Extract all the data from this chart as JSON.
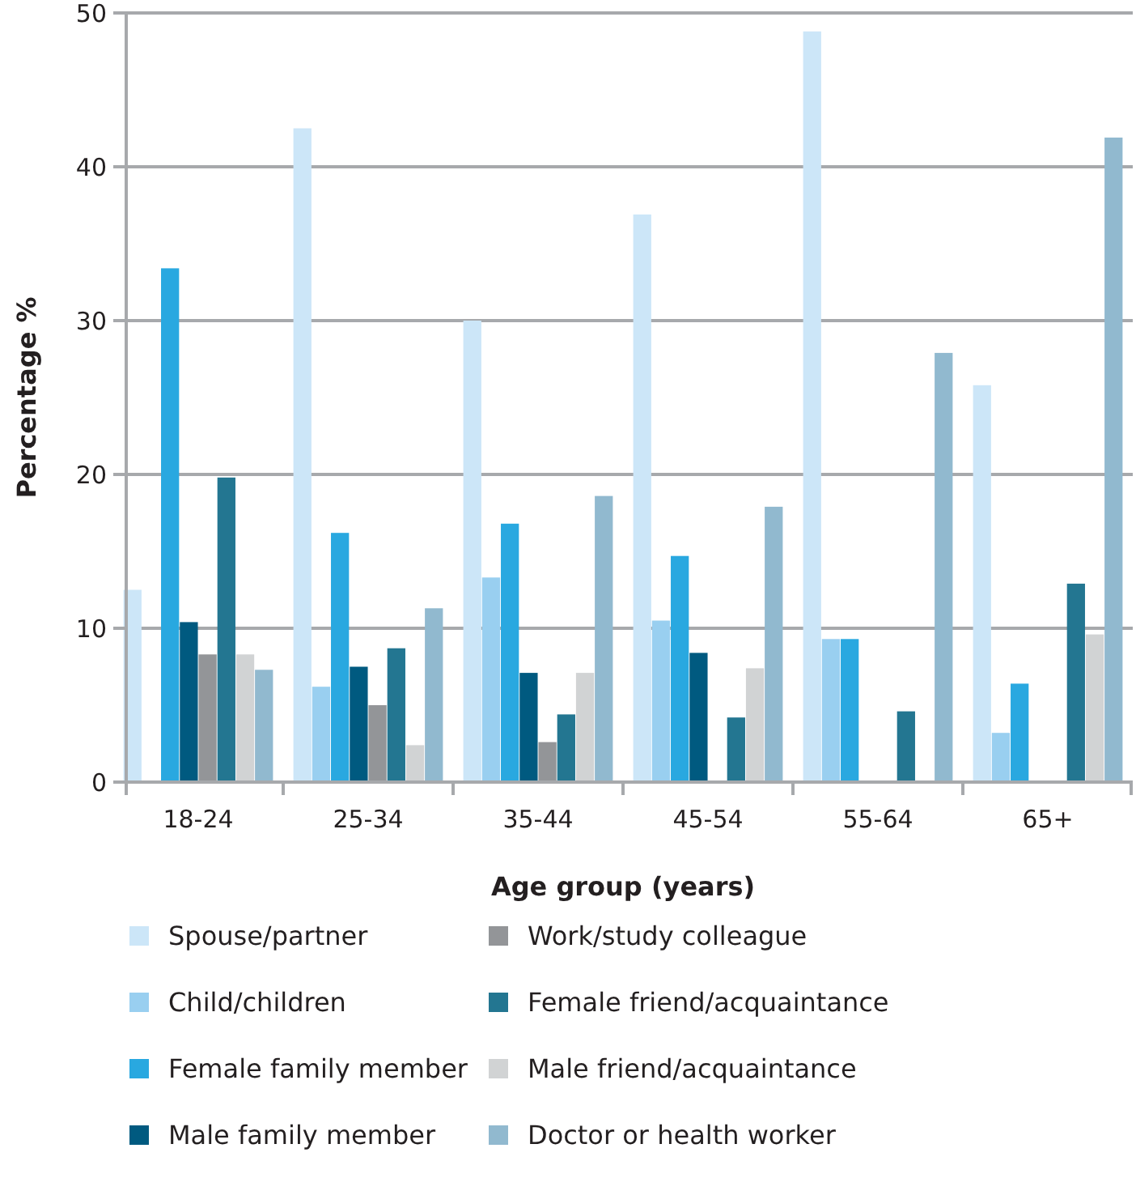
{
  "chart_data": {
    "type": "bar",
    "xlabel": "Age group (years)",
    "ylabel": "Percentage %",
    "categories": [
      "18-24",
      "25-34",
      "35-44",
      "45-54",
      "55-64",
      "65+"
    ],
    "ylim": [
      0,
      50
    ],
    "yticks": [
      0,
      10,
      20,
      30,
      40,
      50
    ],
    "grid": "y",
    "legend": "bottom",
    "series": [
      {
        "name": "Spouse/partner",
        "color": "#cce6f8",
        "values": [
          12.5,
          42.5,
          30.0,
          36.9,
          48.8,
          25.8
        ]
      },
      {
        "name": "Child/children",
        "color": "#99cff0",
        "values": [
          null,
          6.2,
          13.3,
          10.5,
          9.3,
          3.2
        ]
      },
      {
        "name": "Female family member",
        "color": "#29a8e0",
        "values": [
          33.4,
          16.2,
          16.8,
          14.7,
          9.3,
          6.4
        ]
      },
      {
        "name": "Male family member",
        "color": "#005a80",
        "values": [
          10.4,
          7.5,
          7.1,
          8.4,
          null,
          null
        ]
      },
      {
        "name": "Work/study colleague",
        "color": "#939598",
        "values": [
          8.3,
          5.0,
          2.6,
          null,
          null,
          null
        ]
      },
      {
        "name": "Female friend/acquaintance",
        "color": "#237691",
        "values": [
          19.8,
          8.7,
          4.4,
          4.2,
          4.6,
          12.9
        ]
      },
      {
        "name": "Male friend/acquaintance",
        "color": "#d1d3d4",
        "values": [
          8.3,
          2.4,
          7.1,
          7.4,
          null,
          9.6
        ]
      },
      {
        "name": "Doctor or health worker",
        "color": "#91b9cf",
        "values": [
          7.3,
          11.3,
          18.6,
          17.9,
          27.9,
          41.9
        ]
      }
    ]
  }
}
